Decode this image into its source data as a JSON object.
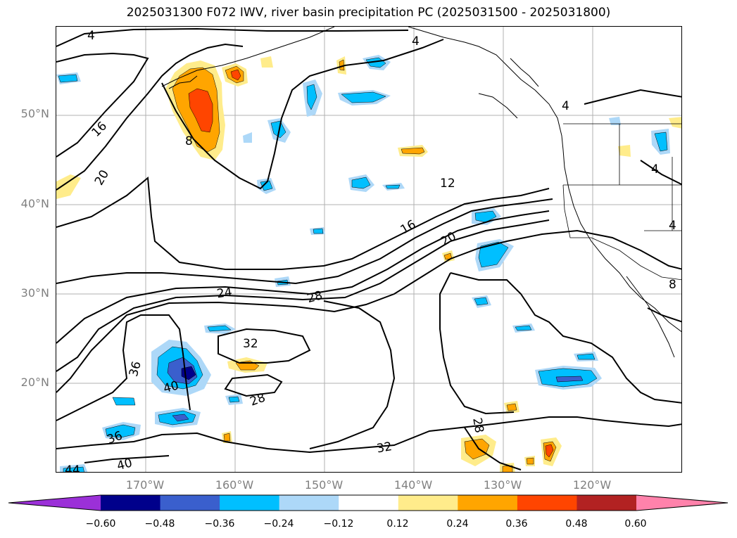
{
  "title": "2025031300 F072 IWV, river basin precipitation PC (2025031500 - 2025031800)",
  "axes": {
    "lat_labels": [
      "50°N",
      "40°N",
      "30°N",
      "20°N"
    ],
    "lon_labels": [
      "170°W",
      "160°W",
      "150°W",
      "140°W",
      "130°W",
      "120°W"
    ]
  },
  "contour_labels": [
    {
      "text": "4",
      "id": "c4a"
    },
    {
      "text": "4",
      "id": "c4b"
    },
    {
      "text": "4",
      "id": "c4c"
    },
    {
      "text": "4",
      "id": "c4d"
    },
    {
      "text": "4",
      "id": "c4e"
    },
    {
      "text": "8",
      "id": "c8a"
    },
    {
      "text": "8",
      "id": "c8b"
    },
    {
      "text": "12",
      "id": "c12"
    },
    {
      "text": "16",
      "id": "c16a"
    },
    {
      "text": "16",
      "id": "c16b"
    },
    {
      "text": "20",
      "id": "c20a"
    },
    {
      "text": "20",
      "id": "c20b"
    },
    {
      "text": "24",
      "id": "c24"
    },
    {
      "text": "28",
      "id": "c28a"
    },
    {
      "text": "28",
      "id": "c28b"
    },
    {
      "text": "28",
      "id": "c28c"
    },
    {
      "text": "32",
      "id": "c32a"
    },
    {
      "text": "32",
      "id": "c32b"
    },
    {
      "text": "36",
      "id": "c36a"
    },
    {
      "text": "36",
      "id": "c36b"
    },
    {
      "text": "40",
      "id": "c40a"
    },
    {
      "text": "40",
      "id": "c40b"
    },
    {
      "text": "44",
      "id": "c44"
    }
  ],
  "colorbar": {
    "ticks": [
      "−0.60",
      "−0.48",
      "−0.36",
      "−0.24",
      "−0.12",
      "0.12",
      "0.24",
      "0.36",
      "0.48",
      "0.60"
    ],
    "colors": [
      "#9b30d8",
      "#00008b",
      "#3a5fcd",
      "#00bfff",
      "#add8f8",
      "#ffffff",
      "#ffec8b",
      "#ffa500",
      "#ff4500",
      "#b22222",
      "#ff82ab"
    ]
  },
  "shading_colors": {
    "neg_light": "#add8f8",
    "neg_mid": "#00bfff",
    "neg_strong": "#3a5fcd",
    "neg_extreme": "#00008b",
    "pos_light": "#ffec8b",
    "pos_mid": "#ffa500",
    "pos_strong": "#ff4500"
  }
}
